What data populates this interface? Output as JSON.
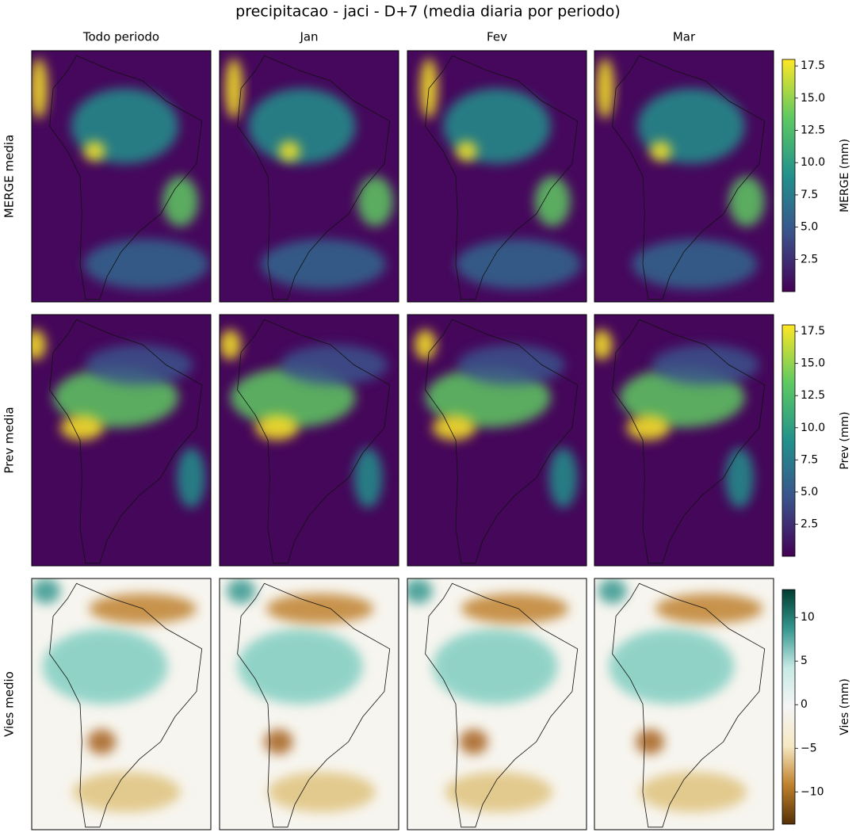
{
  "title": "precipitacao - jaci - D+7 (media diaria por periodo)",
  "columns": [
    "Todo periodo",
    "Jan",
    "Fev",
    "Mar"
  ],
  "rows": [
    {
      "label": "MERGE media",
      "colorbar": {
        "label": "MERGE (mm)",
        "lim": [
          0,
          18
        ],
        "ticks": [
          2.5,
          {
            "value": 5,
            "label": "5.0"
          },
          7.5,
          {
            "value": 10,
            "label": "10.0"
          },
          12.5,
          {
            "value": 15,
            "label": "15.0"
          },
          17.5
        ],
        "colors": [
          "#440154",
          "#3b528b",
          "#21918c",
          "#5ec962",
          "#fde725"
        ]
      }
    },
    {
      "label": "Prev media",
      "colorbar": {
        "label": "Prev (mm)",
        "lim": [
          0,
          18
        ],
        "ticks": [
          2.5,
          {
            "value": 5,
            "label": "5.0"
          },
          7.5,
          {
            "value": 10,
            "label": "10.0"
          },
          12.5,
          {
            "value": 15,
            "label": "15.0"
          },
          17.5
        ],
        "colors": [
          "#440154",
          "#3b528b",
          "#21918c",
          "#5ec962",
          "#fde725"
        ]
      }
    },
    {
      "label": "Vies medio",
      "colorbar": {
        "label": "Vies (mm)",
        "lim": [
          -13.7,
          13.2
        ],
        "ticks": [
          {
            "value": -10,
            "label": "−10"
          },
          {
            "value": -5,
            "label": "−5"
          },
          0,
          5,
          10
        ],
        "colors": [
          "#543005",
          "#bf812d",
          "#f6e8c3",
          "#f5f5f5",
          "#c7eae5",
          "#35978f",
          "#003c30"
        ]
      }
    }
  ]
}
